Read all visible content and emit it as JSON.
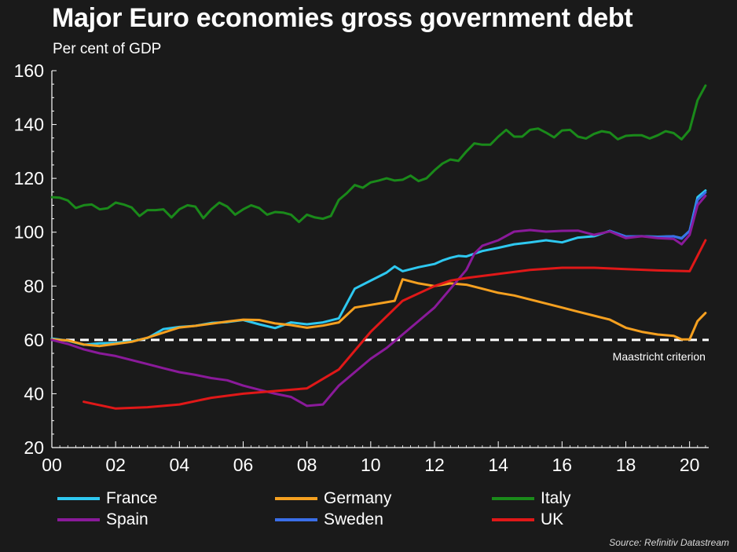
{
  "title": "Major Euro economies gross government debt",
  "subtitle": "Per cent of GDP",
  "source": "Source: Refinitiv Datastream",
  "colors": {
    "background": "#1a1a1a",
    "France": "#2ec8f0",
    "Germany": "#f5a020",
    "Italy": "#1a8a1a",
    "Spain": "#8a1a9a",
    "Sweden": "#3a6ee8",
    "UK": "#e01818",
    "reference": "#ffffff"
  },
  "legend": [
    {
      "name": "France",
      "color": "#2ec8f0"
    },
    {
      "name": "Germany",
      "color": "#f5a020"
    },
    {
      "name": "Italy",
      "color": "#1a8a1a"
    },
    {
      "name": "Spain",
      "color": "#8a1a9a"
    },
    {
      "name": "Sweden",
      "color": "#3a6ee8"
    },
    {
      "name": "UK",
      "color": "#e01818"
    }
  ],
  "chart_data": {
    "type": "line",
    "title": "Major Euro economies gross government debt",
    "subtitle": "Per cent of GDP",
    "xlabel": "",
    "ylabel": "",
    "xlim": [
      2000,
      2020.6
    ],
    "ylim": [
      20,
      160
    ],
    "x_ticks": [
      2000,
      2002,
      2004,
      2006,
      2008,
      2010,
      2012,
      2014,
      2016,
      2018,
      2020
    ],
    "x_tick_labels": [
      "00",
      "02",
      "04",
      "06",
      "08",
      "10",
      "12",
      "14",
      "16",
      "18",
      "20"
    ],
    "y_ticks": [
      20,
      40,
      60,
      80,
      100,
      120,
      140,
      160
    ],
    "y_tick_labels": [
      "20",
      "40",
      "60",
      "80",
      "100",
      "120",
      "140",
      "160"
    ],
    "grid": false,
    "legend_position": "bottom",
    "reference_line": {
      "y": 60,
      "label": "Maastricht criterion",
      "style": "dashed"
    },
    "series": [
      {
        "name": "Italy",
        "points": [
          [
            2000,
            113
          ],
          [
            2000.25,
            112.8
          ],
          [
            2000.5,
            111.8
          ],
          [
            2000.75,
            109
          ],
          [
            2001,
            110
          ],
          [
            2001.25,
            110.3
          ],
          [
            2001.5,
            108.5
          ],
          [
            2001.75,
            108.9
          ],
          [
            2002,
            111
          ],
          [
            2002.25,
            110.3
          ],
          [
            2002.5,
            109.2
          ],
          [
            2002.75,
            106
          ],
          [
            2003,
            108.2
          ],
          [
            2003.25,
            108.2
          ],
          [
            2003.5,
            108.5
          ],
          [
            2003.75,
            105.5
          ],
          [
            2004,
            108.5
          ],
          [
            2004.25,
            110
          ],
          [
            2004.5,
            109.5
          ],
          [
            2004.75,
            105.2
          ],
          [
            2005,
            108.5
          ],
          [
            2005.25,
            111
          ],
          [
            2005.5,
            109.5
          ],
          [
            2005.75,
            106.5
          ],
          [
            2006,
            108.5
          ],
          [
            2006.25,
            110
          ],
          [
            2006.5,
            109
          ],
          [
            2006.75,
            106.5
          ],
          [
            2007,
            107.5
          ],
          [
            2007.25,
            107.3
          ],
          [
            2007.5,
            106.5
          ],
          [
            2007.75,
            103.8
          ],
          [
            2008,
            106.5
          ],
          [
            2008.25,
            105.5
          ],
          [
            2008.5,
            105
          ],
          [
            2008.75,
            106
          ],
          [
            2009,
            112
          ],
          [
            2009.25,
            114.5
          ],
          [
            2009.5,
            117.5
          ],
          [
            2009.75,
            116.5
          ],
          [
            2010,
            118.5
          ],
          [
            2010.25,
            119.2
          ],
          [
            2010.5,
            120
          ],
          [
            2010.75,
            119.2
          ],
          [
            2011,
            119.5
          ],
          [
            2011.25,
            121
          ],
          [
            2011.5,
            119
          ],
          [
            2011.75,
            120
          ],
          [
            2012,
            123
          ],
          [
            2012.25,
            125.5
          ],
          [
            2012.5,
            127
          ],
          [
            2012.75,
            126.5
          ],
          [
            2013,
            130
          ],
          [
            2013.25,
            133
          ],
          [
            2013.5,
            132.5
          ],
          [
            2013.75,
            132.5
          ],
          [
            2014,
            135.5
          ],
          [
            2014.25,
            138
          ],
          [
            2014.5,
            135.5
          ],
          [
            2014.75,
            135.5
          ],
          [
            2015,
            138
          ],
          [
            2015.25,
            138.5
          ],
          [
            2015.5,
            137
          ],
          [
            2015.75,
            135.2
          ],
          [
            2016,
            137.8
          ],
          [
            2016.25,
            138
          ],
          [
            2016.5,
            135.5
          ],
          [
            2016.75,
            134.8
          ],
          [
            2017,
            136.5
          ],
          [
            2017.25,
            137.5
          ],
          [
            2017.5,
            137
          ],
          [
            2017.75,
            134.5
          ],
          [
            2018,
            135.8
          ],
          [
            2018.25,
            136
          ],
          [
            2018.5,
            136
          ],
          [
            2018.75,
            134.8
          ],
          [
            2019,
            136
          ],
          [
            2019.25,
            137.5
          ],
          [
            2019.5,
            136.8
          ],
          [
            2019.75,
            134.5
          ],
          [
            2020,
            138
          ],
          [
            2020.25,
            149
          ],
          [
            2020.5,
            154.5
          ]
        ]
      },
      {
        "name": "France",
        "points": [
          [
            2000,
            60.5
          ],
          [
            2000.5,
            59.7
          ],
          [
            2001,
            58.2
          ],
          [
            2001.5,
            58.7
          ],
          [
            2002,
            58.9
          ],
          [
            2002.5,
            59.5
          ],
          [
            2003,
            60.7
          ],
          [
            2003.5,
            64
          ],
          [
            2004,
            64.8
          ],
          [
            2004.5,
            65.2
          ],
          [
            2005,
            66.3
          ],
          [
            2005.5,
            66.6
          ],
          [
            2006,
            67.4
          ],
          [
            2006.5,
            65.8
          ],
          [
            2007,
            64.4
          ],
          [
            2007.5,
            66.5
          ],
          [
            2008,
            65.8
          ],
          [
            2008.5,
            66.5
          ],
          [
            2009,
            68
          ],
          [
            2009.5,
            79
          ],
          [
            2010,
            82
          ],
          [
            2010.5,
            85
          ],
          [
            2010.75,
            87.3
          ],
          [
            2011,
            85.5
          ],
          [
            2011.5,
            87
          ],
          [
            2012,
            88.2
          ],
          [
            2012.25,
            89.5
          ],
          [
            2012.5,
            90.5
          ],
          [
            2012.75,
            91.2
          ],
          [
            2013,
            91
          ],
          [
            2013.25,
            92
          ],
          [
            2013.5,
            93
          ],
          [
            2014,
            94.2
          ],
          [
            2014.5,
            95.5
          ],
          [
            2015,
            96.2
          ],
          [
            2015.5,
            97
          ],
          [
            2016,
            96.2
          ],
          [
            2016.5,
            98
          ],
          [
            2017,
            98.5
          ],
          [
            2017.5,
            100.5
          ],
          [
            2018,
            98.4
          ],
          [
            2018.5,
            98.5
          ],
          [
            2019,
            98.3
          ],
          [
            2019.5,
            98.5
          ],
          [
            2019.75,
            97.8
          ],
          [
            2020,
            100.5
          ],
          [
            2020.25,
            113
          ],
          [
            2020.5,
            115.5
          ]
        ]
      },
      {
        "name": "Sweden",
        "points": [
          [
            2017.5,
            100.5
          ],
          [
            2018,
            98.4
          ],
          [
            2018.5,
            98.5
          ],
          [
            2019,
            98.2
          ],
          [
            2019.5,
            98.5
          ],
          [
            2019.75,
            97.6
          ],
          [
            2020,
            100.5
          ],
          [
            2020.25,
            112
          ],
          [
            2020.5,
            114.8
          ]
        ]
      },
      {
        "name": "Germany",
        "points": [
          [
            2000,
            60.2
          ],
          [
            2000.5,
            59.8
          ],
          [
            2001,
            58.3
          ],
          [
            2001.5,
            57.7
          ],
          [
            2002,
            58.5
          ],
          [
            2002.5,
            59.3
          ],
          [
            2003,
            60.8
          ],
          [
            2003.5,
            62.7
          ],
          [
            2004,
            64.6
          ],
          [
            2004.5,
            65.2
          ],
          [
            2005,
            66
          ],
          [
            2005.5,
            66.8
          ],
          [
            2006,
            67.5
          ],
          [
            2006.5,
            67.4
          ],
          [
            2007,
            66.1
          ],
          [
            2007.5,
            65.5
          ],
          [
            2008,
            64.5
          ],
          [
            2008.5,
            65.3
          ],
          [
            2009,
            66.5
          ],
          [
            2009.5,
            72
          ],
          [
            2010,
            73
          ],
          [
            2010.5,
            74
          ],
          [
            2010.75,
            74.5
          ],
          [
            2011,
            82.5
          ],
          [
            2011.5,
            81
          ],
          [
            2012,
            80
          ],
          [
            2012.5,
            81
          ],
          [
            2013,
            80.5
          ],
          [
            2013.5,
            79
          ],
          [
            2014,
            77.5
          ],
          [
            2014.5,
            76.5
          ],
          [
            2015,
            75
          ],
          [
            2015.5,
            73.5
          ],
          [
            2016,
            72
          ],
          [
            2016.5,
            70.5
          ],
          [
            2017,
            69
          ],
          [
            2017.5,
            67.5
          ],
          [
            2018,
            64.5
          ],
          [
            2018.5,
            63
          ],
          [
            2019,
            62
          ],
          [
            2019.5,
            61.5
          ],
          [
            2019.75,
            60.2
          ],
          [
            2020,
            60.2
          ],
          [
            2020.25,
            67
          ],
          [
            2020.5,
            70
          ]
        ]
      },
      {
        "name": "Spain",
        "points": [
          [
            2000,
            60
          ],
          [
            2000.5,
            58.5
          ],
          [
            2001,
            56.5
          ],
          [
            2001.5,
            55
          ],
          [
            2002,
            54
          ],
          [
            2002.5,
            52.5
          ],
          [
            2003,
            51
          ],
          [
            2003.5,
            49.5
          ],
          [
            2004,
            48
          ],
          [
            2004.5,
            47
          ],
          [
            2005,
            45.8
          ],
          [
            2005.5,
            45
          ],
          [
            2006,
            43
          ],
          [
            2006.5,
            41.5
          ],
          [
            2007,
            40
          ],
          [
            2007.5,
            38.8
          ],
          [
            2008,
            35.5
          ],
          [
            2008.5,
            36
          ],
          [
            2009,
            43
          ],
          [
            2009.5,
            48
          ],
          [
            2010,
            53
          ],
          [
            2010.5,
            57
          ],
          [
            2011,
            62
          ],
          [
            2011.5,
            67
          ],
          [
            2012,
            72
          ],
          [
            2012.5,
            79
          ],
          [
            2013,
            86
          ],
          [
            2013.25,
            92
          ],
          [
            2013.5,
            95
          ],
          [
            2014,
            97
          ],
          [
            2014.5,
            100.2
          ],
          [
            2015,
            100.8
          ],
          [
            2015.5,
            100.2
          ],
          [
            2016,
            100.5
          ],
          [
            2016.5,
            100.6
          ],
          [
            2017,
            99
          ],
          [
            2017.5,
            100.3
          ],
          [
            2018,
            97.8
          ],
          [
            2018.5,
            98.5
          ],
          [
            2019,
            97.8
          ],
          [
            2019.5,
            97.5
          ],
          [
            2019.75,
            95.5
          ],
          [
            2020,
            99
          ],
          [
            2020.25,
            110
          ],
          [
            2020.5,
            113.5
          ]
        ]
      },
      {
        "name": "UK",
        "points": [
          [
            2001,
            37
          ],
          [
            2002,
            34.5
          ],
          [
            2003,
            35
          ],
          [
            2004,
            36
          ],
          [
            2005,
            38.5
          ],
          [
            2006,
            40
          ],
          [
            2007,
            41
          ],
          [
            2008,
            42
          ],
          [
            2009,
            49
          ],
          [
            2010,
            63
          ],
          [
            2011,
            74.5
          ],
          [
            2012,
            80
          ],
          [
            2012.5,
            82
          ],
          [
            2013,
            83
          ],
          [
            2014,
            84.5
          ],
          [
            2015,
            86
          ],
          [
            2016,
            86.8
          ],
          [
            2017,
            86.8
          ],
          [
            2018,
            86.3
          ],
          [
            2019,
            85.8
          ],
          [
            2020,
            85.5
          ],
          [
            2020.5,
            97
          ]
        ]
      }
    ]
  }
}
